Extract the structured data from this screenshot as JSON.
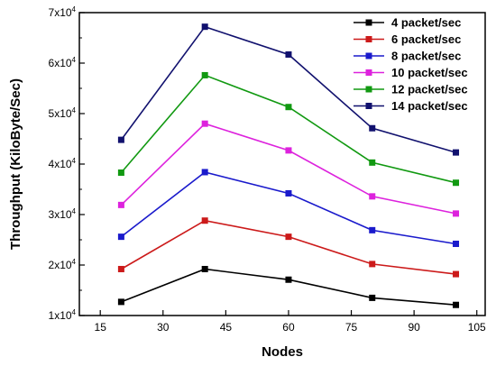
{
  "chart_data": {
    "type": "line",
    "title": "",
    "xlabel": "Nodes",
    "ylabel": "Throughput (KiloByte/Sec)",
    "xlim": [
      10,
      107
    ],
    "ylim": [
      10000,
      70000
    ],
    "x_ticks": [
      15,
      30,
      45,
      60,
      75,
      90,
      105
    ],
    "y_ticks": [
      {
        "value": 10000,
        "mantissa": "1x10",
        "exp": "4"
      },
      {
        "value": 20000,
        "mantissa": "2x10",
        "exp": "4"
      },
      {
        "value": 30000,
        "mantissa": "3x10",
        "exp": "4"
      },
      {
        "value": 40000,
        "mantissa": "4x10",
        "exp": "4"
      },
      {
        "value": 50000,
        "mantissa": "5x10",
        "exp": "4"
      },
      {
        "value": 60000,
        "mantissa": "6x10",
        "exp": "4"
      },
      {
        "value": 70000,
        "mantissa": "7x10",
        "exp": "4"
      }
    ],
    "grid": false,
    "legend_position": "top-right",
    "x": [
      20,
      40,
      60,
      80,
      100
    ],
    "series": [
      {
        "name": "4 packet/sec",
        "color": "#000000",
        "values": [
          12700,
          19200,
          17100,
          13500,
          12100
        ]
      },
      {
        "name": "6 packet/sec",
        "color": "#cc1a1a",
        "values": [
          19200,
          28800,
          25600,
          20200,
          18200
        ]
      },
      {
        "name": "8 packet/sec",
        "color": "#1a1acc",
        "values": [
          25600,
          38400,
          34200,
          26900,
          24200
        ]
      },
      {
        "name": "10 packet/sec",
        "color": "#dd22dd",
        "values": [
          31900,
          48000,
          42700,
          33600,
          30200
        ]
      },
      {
        "name": "12 packet/sec",
        "color": "#119911",
        "values": [
          38300,
          57600,
          51300,
          40300,
          36300
        ]
      },
      {
        "name": "14 packet/sec",
        "color": "#11116e",
        "values": [
          44800,
          67200,
          61700,
          47100,
          42300
        ]
      }
    ]
  }
}
